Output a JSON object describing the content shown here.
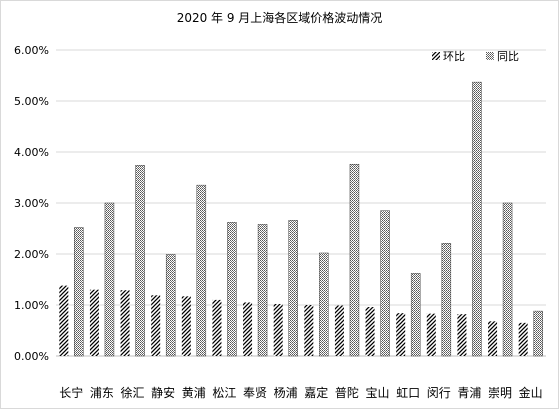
{
  "chart_data": {
    "type": "bar",
    "title": "2020 年 9 月上海各区域价格波动情况",
    "categories": [
      "长宁",
      "浦东",
      "徐汇",
      "静安",
      "黄浦",
      "松江",
      "奉贤",
      "杨浦",
      "嘉定",
      "普陀",
      "宝山",
      "虹口",
      "闵行",
      "青浦",
      "崇明",
      "金山"
    ],
    "series": [
      {
        "name": "环比",
        "pattern": "hatch",
        "values": [
          1.38,
          1.3,
          1.29,
          1.19,
          1.17,
          1.1,
          1.05,
          1.02,
          1.0,
          0.99,
          0.96,
          0.84,
          0.83,
          0.82,
          0.68,
          0.65
        ]
      },
      {
        "name": "同比",
        "pattern": "dots",
        "values": [
          2.52,
          3.0,
          3.74,
          1.99,
          3.35,
          2.62,
          2.58,
          2.66,
          2.02,
          3.76,
          2.85,
          1.62,
          2.21,
          5.37,
          3.0,
          0.88
        ]
      }
    ],
    "ylim": [
      0,
      6
    ],
    "yticks": [
      "0.00%",
      "1.00%",
      "2.00%",
      "3.00%",
      "4.00%",
      "5.00%",
      "6.00%"
    ],
    "grid": true,
    "legend_position": "top-right",
    "colors": {
      "grid": "#d9d9d9",
      "bar_stroke": "#000000"
    }
  }
}
